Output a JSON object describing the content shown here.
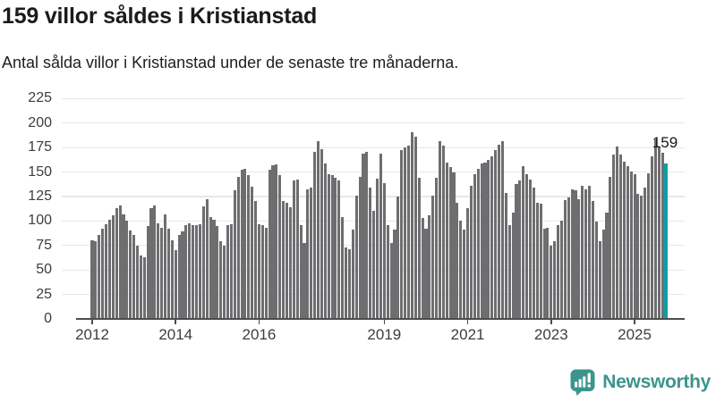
{
  "header": {
    "title": "159 villor såldes i Kristianstad",
    "subtitle": "Antal sålda villor i Kristianstad under de senaste tre månaderna."
  },
  "annotation": {
    "latest_value": "159"
  },
  "branding": {
    "name": "Newsworthy",
    "icon": "newsworthy-speech-bubble-chart-icon"
  },
  "colors": {
    "bar": "#6e6e71",
    "accent": "#0aa0a6",
    "grid": "#e8e8e8",
    "axis_line": "#4d4d4d",
    "axis_text": "#3d3d3d",
    "title_text": "#1b1b1b",
    "logo": "#3b958b"
  },
  "chart_data": {
    "type": "bar",
    "title": "159 villor såldes i Kristianstad",
    "subtitle": "Antal sålda villor i Kristianstad under de senaste tre månaderna.",
    "frequency": "monthly",
    "x_start_year": 2012,
    "xticklabels": [
      "2012",
      "2014",
      "2016",
      "2019",
      "2021",
      "2023",
      "2025"
    ],
    "yticks": [
      0,
      25,
      50,
      75,
      100,
      125,
      150,
      175,
      200,
      225
    ],
    "ylim": [
      0,
      225
    ],
    "grid": "horizontal",
    "legend": "none",
    "highlight": {
      "index": 165,
      "value": 159,
      "label": "159"
    },
    "values": [
      80,
      79,
      86,
      92,
      97,
      101,
      106,
      113,
      116,
      107,
      100,
      90,
      86,
      75,
      65,
      63,
      95,
      113,
      116,
      98,
      93,
      107,
      92,
      80,
      70,
      86,
      89,
      96,
      98,
      96,
      96,
      97,
      115,
      122,
      104,
      101,
      95,
      79,
      75,
      96,
      97,
      131,
      145,
      152,
      153,
      147,
      135,
      120,
      97,
      96,
      93,
      152,
      157,
      158,
      147,
      120,
      119,
      114,
      141,
      142,
      96,
      78,
      132,
      134,
      171,
      182,
      173,
      159,
      148,
      147,
      144,
      141,
      104,
      73,
      71,
      91,
      126,
      145,
      169,
      171,
      134,
      110,
      143,
      169,
      139,
      96,
      78,
      91,
      125,
      172,
      175,
      177,
      191,
      186,
      144,
      103,
      92,
      106,
      126,
      144,
      182,
      177,
      160,
      155,
      150,
      119,
      100,
      91,
      113,
      136,
      148,
      153,
      159,
      160,
      162,
      166,
      172,
      178,
      182,
      129,
      96,
      109,
      138,
      141,
      156,
      148,
      142,
      134,
      119,
      118,
      92,
      93,
      75,
      79,
      96,
      100,
      121,
      124,
      132,
      131,
      122,
      136,
      132,
      136,
      120,
      99,
      79,
      91,
      109,
      145,
      168,
      176,
      168,
      161,
      156,
      151,
      148,
      128,
      126,
      134,
      149,
      166,
      183,
      176,
      170,
      159
    ]
  }
}
